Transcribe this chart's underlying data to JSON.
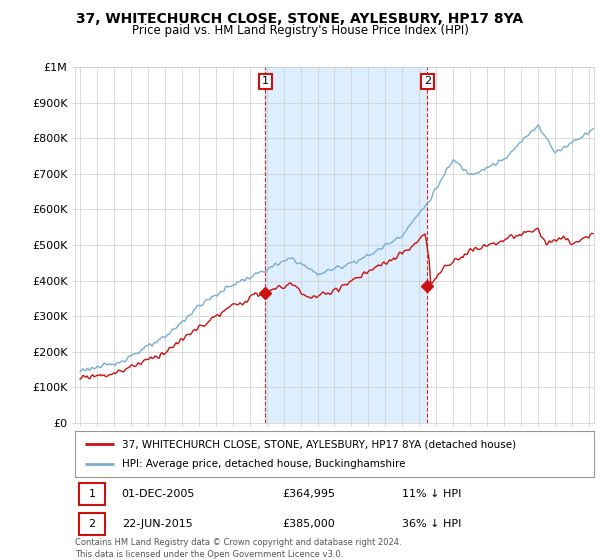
{
  "title": "37, WHITECHURCH CLOSE, STONE, AYLESBURY, HP17 8YA",
  "subtitle": "Price paid vs. HM Land Registry's House Price Index (HPI)",
  "ylabel_ticks": [
    "£0",
    "£100K",
    "£200K",
    "£300K",
    "£400K",
    "£500K",
    "£600K",
    "£700K",
    "£800K",
    "£900K",
    "£1M"
  ],
  "ytick_values": [
    0,
    100000,
    200000,
    300000,
    400000,
    500000,
    600000,
    700000,
    800000,
    900000,
    1000000
  ],
  "ylim": [
    0,
    1000000
  ],
  "xlim_start": 1994.7,
  "xlim_end": 2025.3,
  "hpi_color": "#7aadd4",
  "price_color": "#cc1111",
  "transaction1_x": 2005.917,
  "transaction1_y": 364995,
  "transaction1_label": "1",
  "transaction1_date": "01-DEC-2005",
  "transaction1_price": "£364,995",
  "transaction1_hpi": "11% ↓ HPI",
  "transaction2_x": 2015.472,
  "transaction2_y": 385000,
  "transaction2_label": "2",
  "transaction2_date": "22-JUN-2015",
  "transaction2_price": "£385,000",
  "transaction2_hpi": "36% ↓ HPI",
  "legend_line1": "37, WHITECHURCH CLOSE, STONE, AYLESBURY, HP17 8YA (detached house)",
  "legend_line2": "HPI: Average price, detached house, Buckinghamshire",
  "footer": "Contains HM Land Registry data © Crown copyright and database right 2024.\nThis data is licensed under the Open Government Licence v3.0.",
  "background_color": "#ffffff",
  "plot_bg_color": "#ffffff",
  "shade_color": "#ddeeff",
  "grid_color": "#cccccc"
}
